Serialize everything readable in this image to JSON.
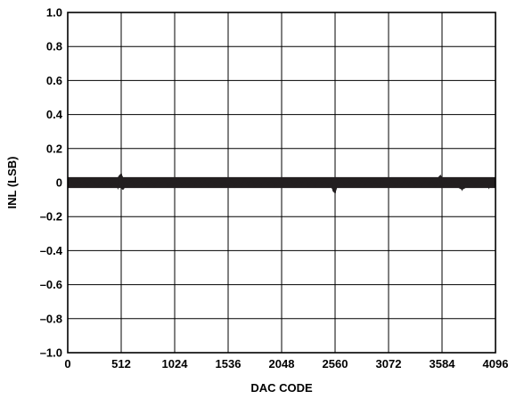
{
  "chart_data": {
    "type": "line",
    "title": "",
    "xlabel": "DAC CODE",
    "ylabel": "INL (LSB)",
    "xlim": [
      0,
      4096
    ],
    "ylim": [
      -1.0,
      1.0
    ],
    "x_ticks": [
      0,
      512,
      1024,
      1536,
      2048,
      2560,
      3072,
      3584,
      4096
    ],
    "x_tick_labels": [
      "0",
      "512",
      "1024",
      "1536",
      "2048",
      "2560",
      "3072",
      "3584",
      "4096"
    ],
    "y_ticks": [
      1.0,
      0.8,
      0.6,
      0.4,
      0.2,
      0,
      -0.2,
      -0.4,
      -0.6,
      -0.8,
      -1.0
    ],
    "y_tick_labels": [
      "1.0",
      "0.8",
      "0.6",
      "0.4",
      "0.2",
      "0",
      "–0.2",
      "–0.4",
      "–0.6",
      "–0.8",
      "–1.0"
    ],
    "grid": true,
    "legend": "none",
    "series": [
      {
        "color": "#231f20",
        "band_min": -0.03,
        "band_max": 0.03,
        "points": [
          [
            0,
            0.0
          ],
          [
            32,
            0.02
          ],
          [
            64,
            -0.02
          ],
          [
            96,
            0.02
          ],
          [
            128,
            -0.01
          ],
          [
            160,
            0.01
          ],
          [
            192,
            -0.02
          ],
          [
            224,
            0.02
          ],
          [
            256,
            0.0
          ],
          [
            288,
            -0.02
          ],
          [
            320,
            0.02
          ],
          [
            352,
            -0.01
          ],
          [
            384,
            0.02
          ],
          [
            416,
            -0.02
          ],
          [
            448,
            0.01
          ],
          [
            480,
            -0.03
          ],
          [
            496,
            0.04
          ],
          [
            512,
            0.05
          ],
          [
            528,
            -0.04
          ],
          [
            544,
            0.02
          ],
          [
            576,
            -0.02
          ],
          [
            608,
            0.02
          ],
          [
            640,
            -0.02
          ],
          [
            672,
            0.01
          ],
          [
            704,
            -0.01
          ],
          [
            736,
            0.02
          ],
          [
            768,
            -0.02
          ],
          [
            800,
            0.01
          ],
          [
            832,
            -0.02
          ],
          [
            864,
            0.02
          ],
          [
            896,
            -0.01
          ],
          [
            928,
            0.02
          ],
          [
            960,
            -0.02
          ],
          [
            992,
            0.01
          ],
          [
            1024,
            -0.02
          ],
          [
            1056,
            0.02
          ],
          [
            1088,
            -0.02
          ],
          [
            1120,
            0.01
          ],
          [
            1152,
            -0.02
          ],
          [
            1184,
            0.02
          ],
          [
            1216,
            -0.01
          ],
          [
            1248,
            0.02
          ],
          [
            1280,
            -0.02
          ],
          [
            1312,
            0.01
          ],
          [
            1344,
            -0.02
          ],
          [
            1376,
            0.02
          ],
          [
            1408,
            -0.01
          ],
          [
            1440,
            0.02
          ],
          [
            1472,
            -0.02
          ],
          [
            1504,
            0.01
          ],
          [
            1536,
            -0.03
          ],
          [
            1568,
            0.02
          ],
          [
            1600,
            -0.02
          ],
          [
            1632,
            0.01
          ],
          [
            1664,
            -0.02
          ],
          [
            1696,
            0.02
          ],
          [
            1728,
            -0.01
          ],
          [
            1760,
            0.02
          ],
          [
            1792,
            -0.02
          ],
          [
            1824,
            0.01
          ],
          [
            1856,
            -0.02
          ],
          [
            1888,
            0.02
          ],
          [
            1920,
            -0.01
          ],
          [
            1952,
            0.02
          ],
          [
            1984,
            -0.02
          ],
          [
            2016,
            0.01
          ],
          [
            2048,
            -0.02
          ],
          [
            2080,
            0.02
          ],
          [
            2112,
            -0.01
          ],
          [
            2144,
            0.01
          ],
          [
            2176,
            -0.02
          ],
          [
            2208,
            0.02
          ],
          [
            2240,
            -0.01
          ],
          [
            2272,
            0.02
          ],
          [
            2304,
            -0.02
          ],
          [
            2336,
            0.01
          ],
          [
            2368,
            -0.02
          ],
          [
            2400,
            0.02
          ],
          [
            2432,
            -0.01
          ],
          [
            2464,
            0.02
          ],
          [
            2496,
            -0.02
          ],
          [
            2528,
            0.01
          ],
          [
            2544,
            -0.05
          ],
          [
            2560,
            -0.06
          ],
          [
            2576,
            0.02
          ],
          [
            2592,
            -0.02
          ],
          [
            2624,
            0.02
          ],
          [
            2656,
            -0.01
          ],
          [
            2688,
            0.02
          ],
          [
            2720,
            -0.02
          ],
          [
            2752,
            0.01
          ],
          [
            2784,
            -0.02
          ],
          [
            2816,
            0.02
          ],
          [
            2848,
            -0.01
          ],
          [
            2880,
            0.02
          ],
          [
            2912,
            -0.02
          ],
          [
            2944,
            0.01
          ],
          [
            2976,
            -0.02
          ],
          [
            3008,
            0.02
          ],
          [
            3040,
            -0.01
          ],
          [
            3072,
            -0.02
          ],
          [
            3104,
            0.02
          ],
          [
            3136,
            -0.02
          ],
          [
            3168,
            0.01
          ],
          [
            3200,
            -0.02
          ],
          [
            3232,
            0.02
          ],
          [
            3264,
            -0.01
          ],
          [
            3296,
            0.02
          ],
          [
            3328,
            -0.02
          ],
          [
            3360,
            0.01
          ],
          [
            3392,
            -0.02
          ],
          [
            3424,
            0.02
          ],
          [
            3456,
            -0.01
          ],
          [
            3488,
            0.02
          ],
          [
            3520,
            -0.02
          ],
          [
            3552,
            0.03
          ],
          [
            3568,
            0.04
          ],
          [
            3584,
            -0.03
          ],
          [
            3616,
            0.02
          ],
          [
            3648,
            -0.02
          ],
          [
            3680,
            0.02
          ],
          [
            3712,
            -0.02
          ],
          [
            3744,
            0.01
          ],
          [
            3776,
            -0.04
          ],
          [
            3808,
            0.02
          ],
          [
            3840,
            -0.02
          ],
          [
            3872,
            0.01
          ],
          [
            3904,
            -0.02
          ],
          [
            3936,
            0.02
          ],
          [
            3968,
            -0.01
          ],
          [
            4000,
            0.02
          ],
          [
            4032,
            -0.03
          ],
          [
            4064,
            0.02
          ],
          [
            4096,
            -0.02
          ]
        ]
      }
    ]
  }
}
